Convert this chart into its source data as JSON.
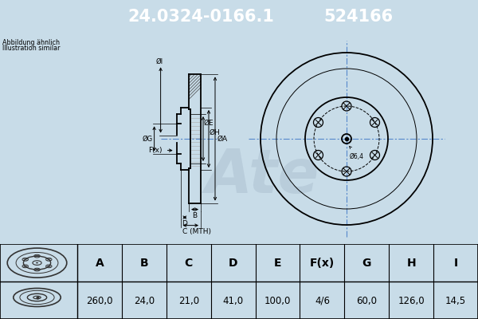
{
  "title_part": "24.0324-0166.1",
  "title_code": "524166",
  "header_bg": "#0000ee",
  "header_text_color": "#ffffff",
  "body_bg": "#c8dce8",
  "table_bg": "#ffffff",
  "table_headers": [
    "A",
    "B",
    "C",
    "D",
    "E",
    "F(x)",
    "G",
    "H",
    "I"
  ],
  "table_values": [
    "260,0",
    "24,0",
    "21,0",
    "41,0",
    "100,0",
    "4/6",
    "60,0",
    "126,0",
    "14,5"
  ],
  "note_line1": "Abbildung ähnlich",
  "note_line2": "Illustration similar",
  "dim_label_6_4": "Ø6,4",
  "dim_label_A": "ØA",
  "dim_label_H": "ØH",
  "dim_label_E": "ØE",
  "dim_label_G": "ØG",
  "dim_label_I": "ØI",
  "dim_label_F": "F(x)",
  "dim_label_B": "B",
  "dim_label_C": "C (MTH)",
  "dim_label_D": "D",
  "line_color": "#000000",
  "hatch_color": "#444444",
  "center_line_color": "#5588cc",
  "watermark_color": "#b8ccda"
}
